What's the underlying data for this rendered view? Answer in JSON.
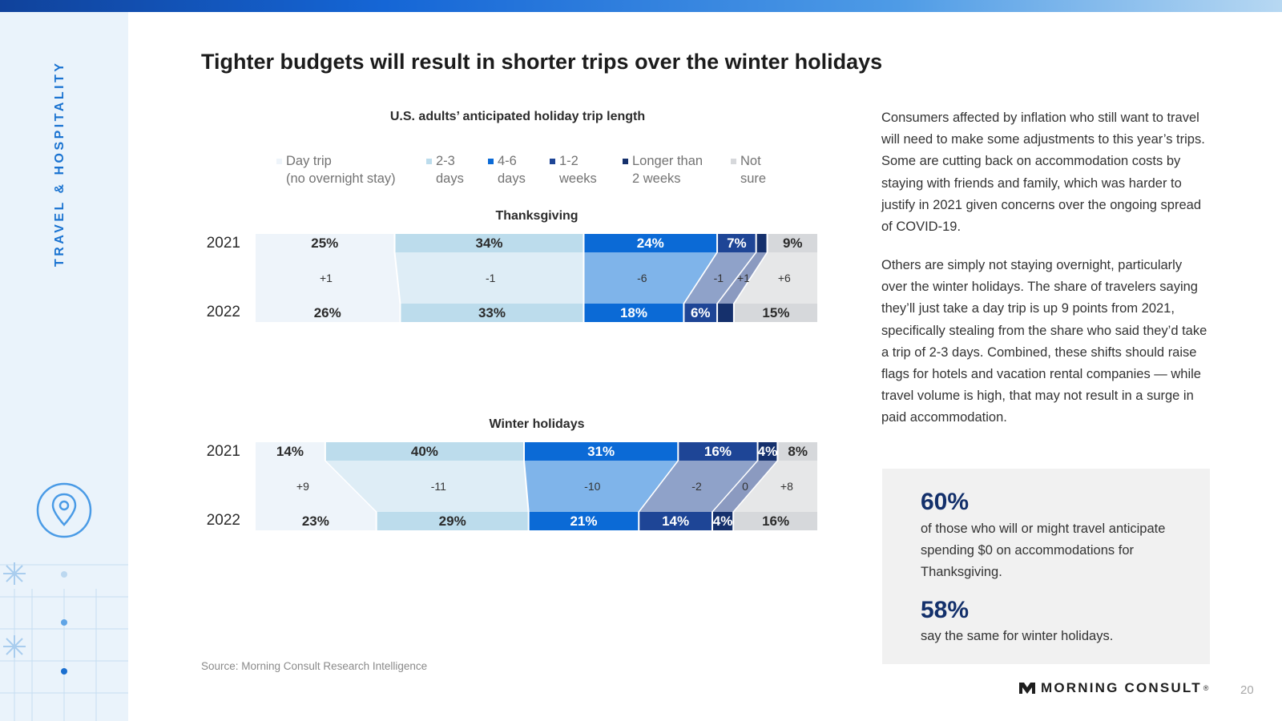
{
  "side_label": "TRAVEL & HOSPITALITY",
  "title": "Tighter budgets will result in shorter trips over the winter holidays",
  "chart_data": {
    "type": "bar",
    "orientation": "horizontal",
    "stacked": true,
    "title": "U.S. adults’ anticipated holiday trip length",
    "unit": "%",
    "categories": [
      "Day trip (no overnight stay)",
      "2-3 days",
      "4-6 days",
      "1-2 weeks",
      "Longer than 2 weeks",
      "Not sure"
    ],
    "legend_labels": [
      [
        "Day trip",
        "(no overnight stay)"
      ],
      [
        "2-3",
        "days"
      ],
      [
        "4-6",
        "days"
      ],
      [
        "1-2",
        "weeks"
      ],
      [
        "Longer than",
        "2 weeks"
      ],
      [
        "Not",
        "sure"
      ]
    ],
    "colors": [
      "#eef4fa",
      "#bcdcec",
      "#0b6ad6",
      "#1e4596",
      "#15306c",
      "#d6d8db"
    ],
    "label_colors": [
      "#2b2b2b",
      "#2b2b2b",
      "#ffffff",
      "#ffffff",
      "#ffffff",
      "#2b2b2b"
    ],
    "change_colors": [
      "#eef4fa",
      "#deedf6",
      "#7fb4ea",
      "#8fa2c9",
      "#8b9ac0",
      "#e6e7e8"
    ],
    "panels": [
      {
        "name": "Thanksgiving",
        "years": [
          "2021",
          "2022"
        ],
        "values_2021": [
          25,
          34,
          24,
          7,
          2,
          9
        ],
        "values_2022": [
          26,
          33,
          18,
          6,
          3,
          15
        ],
        "labels_2021": [
          "25%",
          "34%",
          "24%",
          "7%",
          "",
          "9%"
        ],
        "labels_2022": [
          "26%",
          "33%",
          "18%",
          "6%",
          "",
          "15%"
        ],
        "changes": [
          "+1",
          "-1",
          "-6",
          "-1",
          "+1",
          "+6"
        ]
      },
      {
        "name": "Winter holidays",
        "years": [
          "2021",
          "2022"
        ],
        "values_2021": [
          14,
          40,
          31,
          16,
          4,
          8
        ],
        "values_2022": [
          23,
          29,
          21,
          14,
          4,
          16
        ],
        "labels_2021": [
          "14%",
          "40%",
          "31%",
          "16%",
          "4%",
          "8%"
        ],
        "labels_2022": [
          "23%",
          "29%",
          "21%",
          "14%",
          "4%",
          "16%"
        ],
        "changes": [
          "+9",
          "-11",
          "-10",
          "-2",
          "0",
          "+8"
        ]
      }
    ]
  },
  "source": "Source: Morning Consult Research Intelligence",
  "paragraph1": "Consumers affected by inflation who still want to travel will need to make some adjustments to this year’s trips. Some are cutting back on accommodation costs by staying with friends and family, which was harder to justify in 2021 given concerns over the ongoing spread of COVID-19.",
  "paragraph2": "Others are simply not staying overnight, particularly over the winter holidays. The share of travelers saying they’ll just take a day trip is up 9 points from 2021, specifically stealing from the share who said they’d take a trip of 2-3 days. Combined, these shifts should raise flags for hotels and vacation rental companies — while travel volume is high, that may not result in a surge in paid accommodation.",
  "callout": {
    "stat1": "60%",
    "text1": "of those who will or might travel anticipate spending $0 on accommodations for Thanksgiving.",
    "stat2": "58%",
    "text2": "say the same for winter holidays."
  },
  "logo": {
    "text": "MORNING CONSULT",
    "reg": "®"
  },
  "page_number": "20"
}
